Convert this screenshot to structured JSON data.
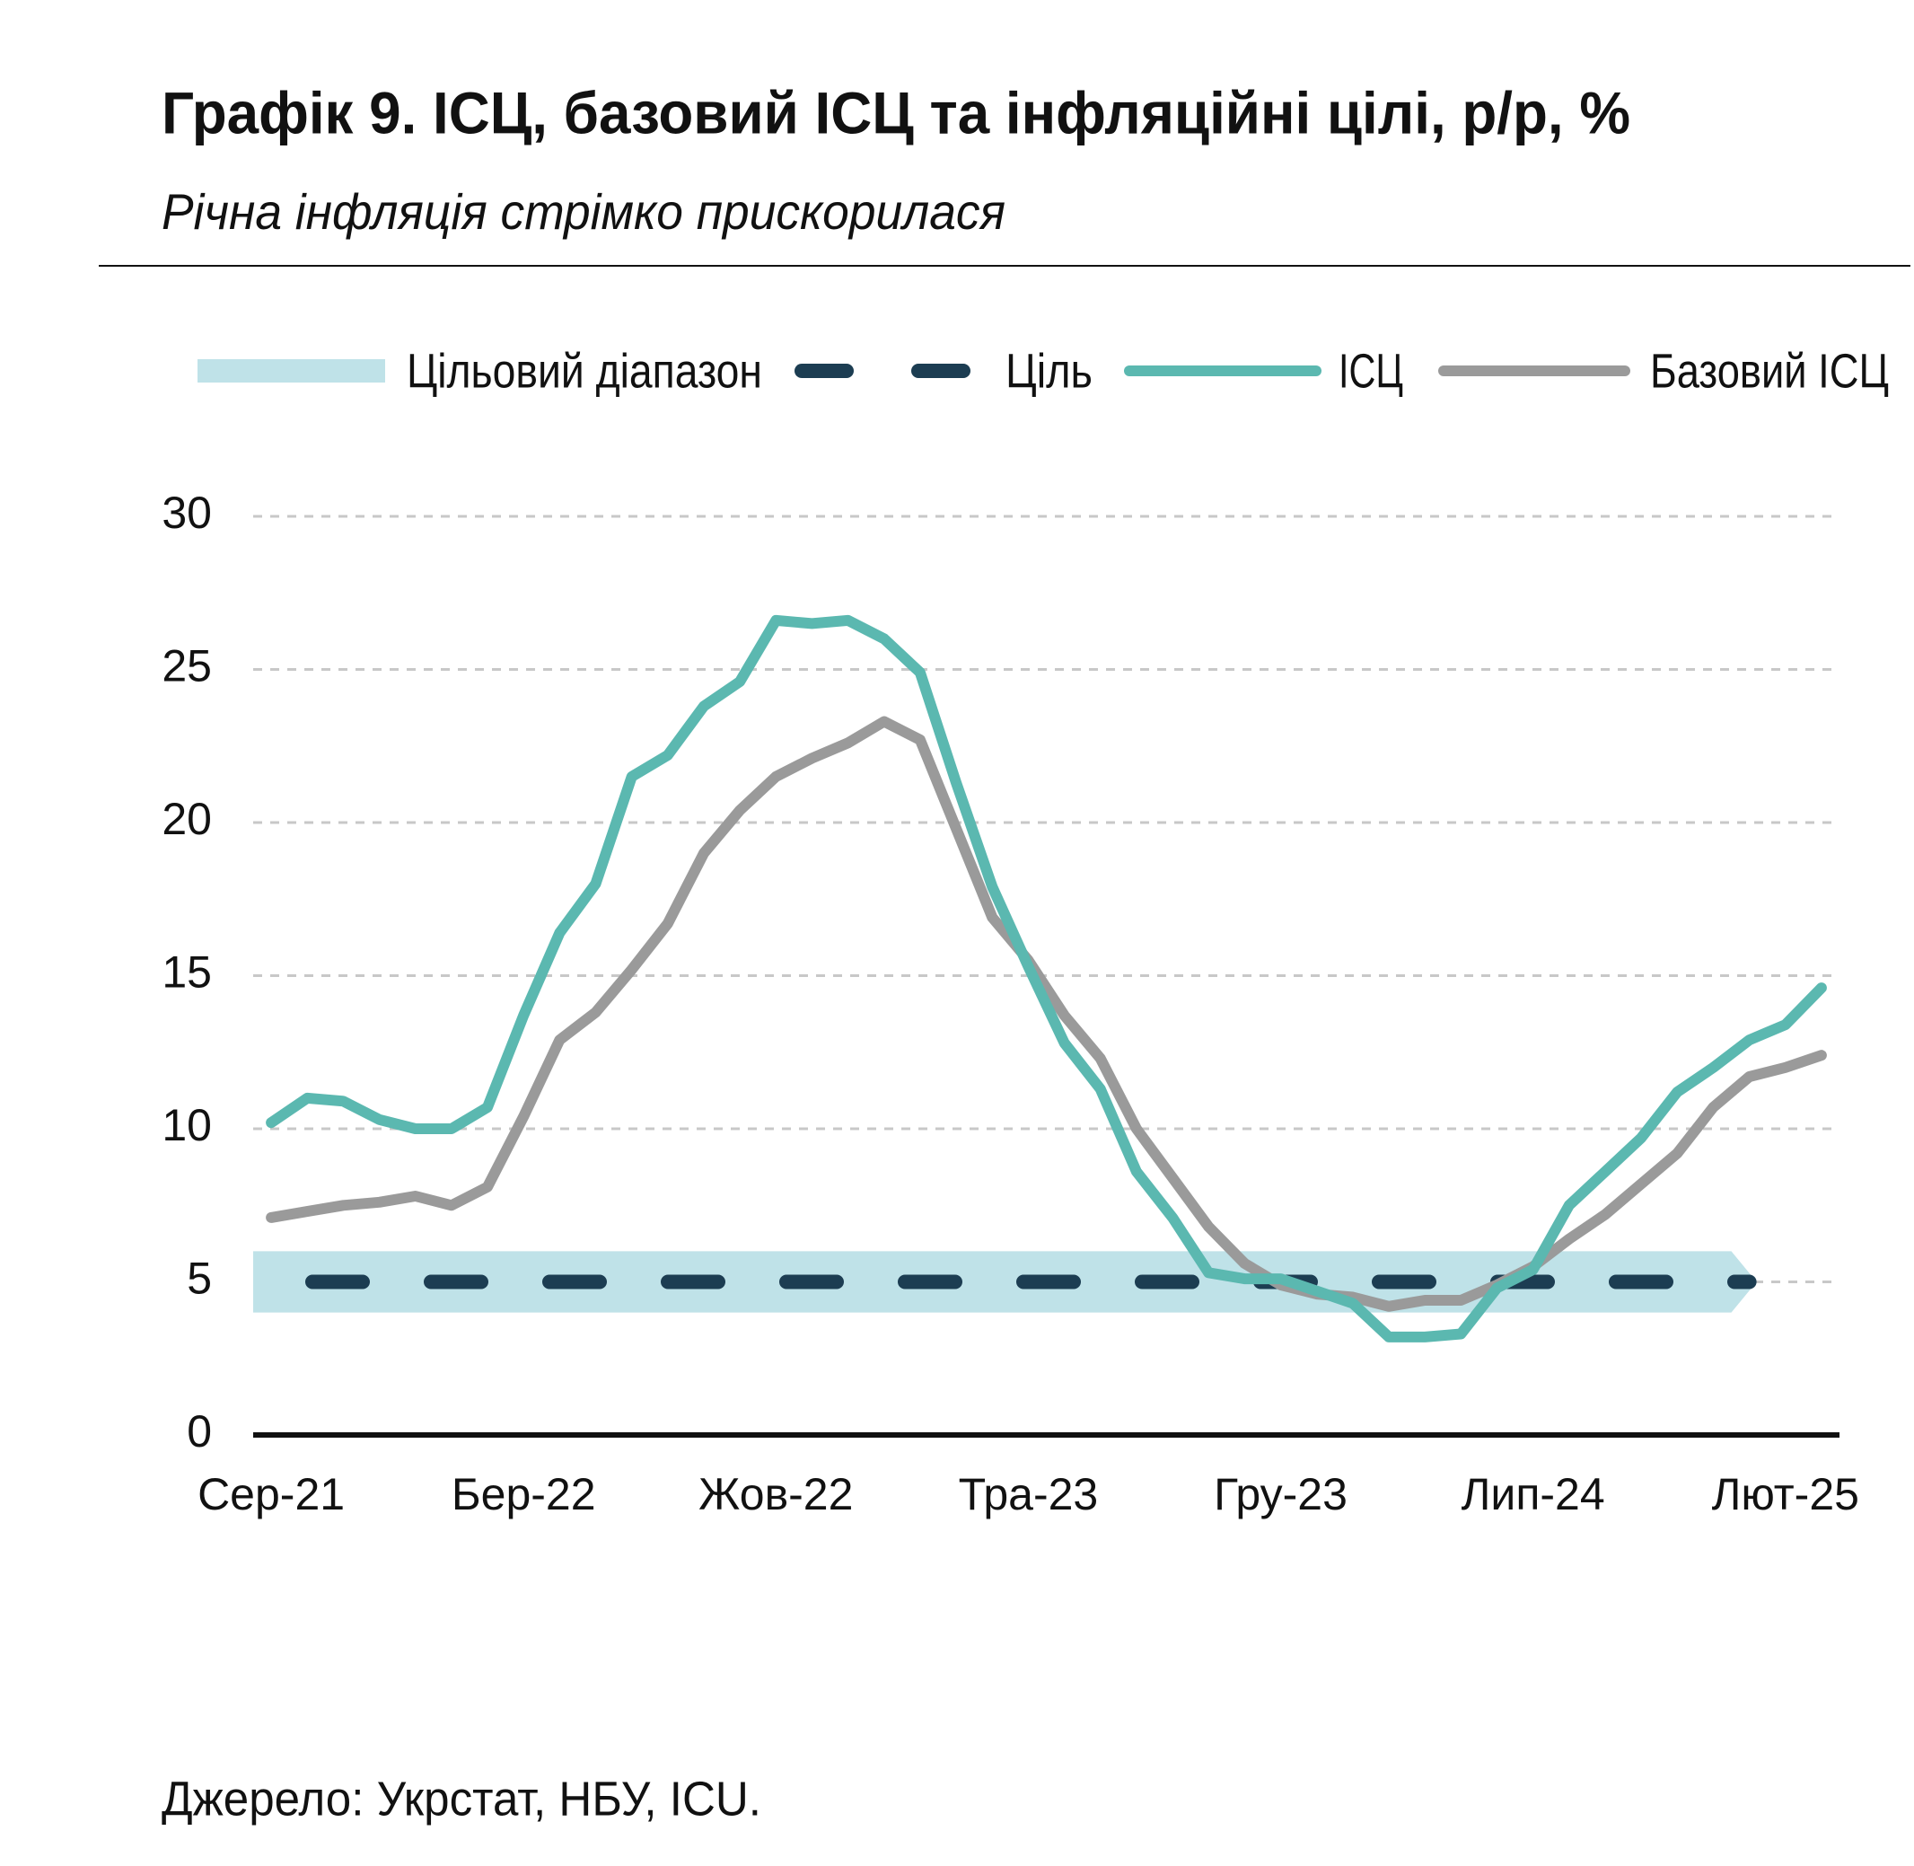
{
  "chart_data": {
    "type": "line",
    "title": "Графік 9. ІСЦ, базовий ІСЦ та інфляційні цілі, р/р, %",
    "subtitle": "Річна інфляція стрімко прискорилася",
    "source": "Джерело: Укрстат, НБУ, ICU.",
    "categories": [
      "Сер-21",
      null,
      null,
      null,
      null,
      null,
      null,
      "Бер-22",
      null,
      null,
      null,
      null,
      null,
      null,
      "Жов-22",
      null,
      null,
      null,
      null,
      null,
      null,
      "Тра-23",
      null,
      null,
      null,
      null,
      null,
      null,
      "Гру-23",
      null,
      null,
      null,
      null,
      null,
      null,
      "Лип-24",
      null,
      null,
      null,
      null,
      null,
      null,
      "Лют-25",
      null
    ],
    "series": [
      {
        "name": "ІСЦ",
        "color": "#5bb8b0",
        "values": [
          10.2,
          11.0,
          10.9,
          10.3,
          10.0,
          10.0,
          10.7,
          13.7,
          16.4,
          18.0,
          21.5,
          22.2,
          23.8,
          24.6,
          26.6,
          26.5,
          26.6,
          26.0,
          24.9,
          21.3,
          17.9,
          15.3,
          12.8,
          11.3,
          8.6,
          7.1,
          5.3,
          5.1,
          5.1,
          4.7,
          4.3,
          3.2,
          3.2,
          3.3,
          4.8,
          5.4,
          7.5,
          8.6,
          9.7,
          11.2,
          12.0,
          12.9,
          13.4,
          14.6
        ]
      },
      {
        "name": "Базовий ІСЦ",
        "color": "#9a9a9a",
        "values": [
          7.1,
          7.3,
          7.5,
          7.6,
          7.8,
          7.5,
          8.1,
          10.4,
          12.9,
          13.8,
          15.2,
          16.7,
          19.0,
          20.4,
          21.5,
          22.1,
          22.6,
          23.3,
          22.7,
          19.8,
          16.9,
          15.5,
          13.7,
          12.3,
          10.0,
          8.4,
          6.8,
          5.6,
          4.9,
          4.6,
          4.5,
          4.2,
          4.4,
          4.4,
          4.9,
          5.5,
          6.4,
          7.2,
          8.2,
          9.2,
          10.7,
          11.7,
          12.0,
          12.4
        ]
      }
    ],
    "target": 5,
    "target_name": "Ціль",
    "target_color": "#1c3d52",
    "target_range": [
      4,
      6
    ],
    "target_range_name": "Цільовий діапазон",
    "target_range_color": "#bfe2e8",
    "ylim": [
      0,
      30
    ],
    "yticks": [
      0,
      5,
      10,
      15,
      20,
      25,
      30
    ],
    "grid": true
  }
}
